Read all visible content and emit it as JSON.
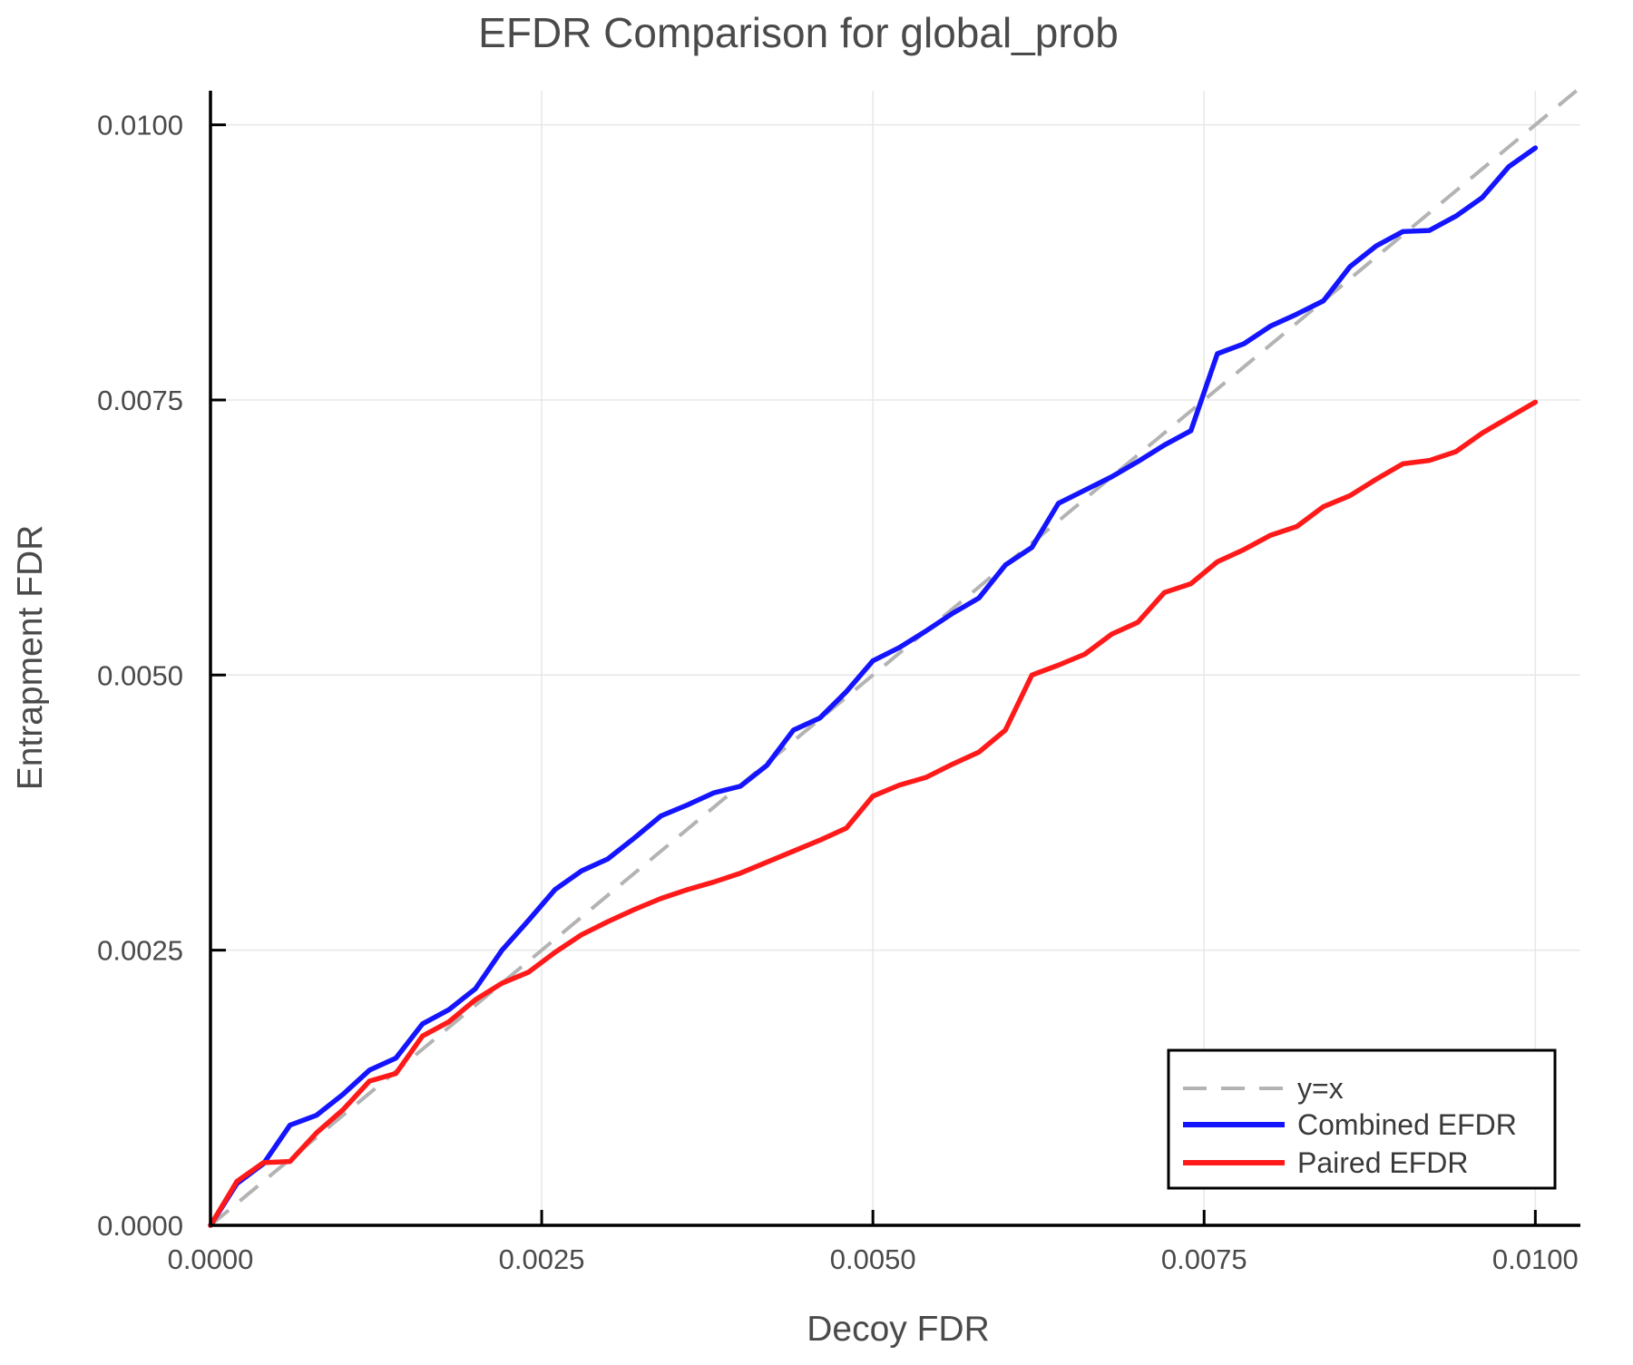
{
  "figure": {
    "title": "EFDR Comparison for global_prob",
    "xlabel": "Decoy FDR",
    "ylabel": "Entrapment FDR"
  },
  "legend": {
    "position": "bottom-right",
    "items": [
      {
        "label": "y=x",
        "color": "#b3b3b3",
        "dashed": true
      },
      {
        "label": "Combined EFDR",
        "color": "#1414ff",
        "dashed": false
      },
      {
        "label": "Paired EFDR",
        "color": "#ff1a1a",
        "dashed": false
      }
    ]
  },
  "colors": {
    "background": "#ffffff",
    "grid": "#e7e7e7",
    "spine": "#000000",
    "text": "#4a4a4a",
    "reference_line": "#b3b3b3",
    "combined_line": "#1414ff",
    "paired_line": "#ff1a1a"
  },
  "chart_data": {
    "type": "line",
    "title": "EFDR Comparison for global_prob",
    "xlabel": "Decoy FDR",
    "ylabel": "Entrapment FDR",
    "xlim": [
      0,
      0.01034
    ],
    "ylim": [
      0,
      0.01031
    ],
    "grid": true,
    "legend_position": "bottom-right",
    "x_ticks": {
      "values": [
        0.0,
        0.0025,
        0.005,
        0.0075,
        0.01
      ],
      "labels": [
        "0.0000",
        "0.0025",
        "0.0050",
        "0.0075",
        "0.0100"
      ]
    },
    "y_ticks": {
      "values": [
        0.0,
        0.0025,
        0.005,
        0.0075,
        0.01
      ],
      "labels": [
        "0.0000",
        "0.0025",
        "0.0050",
        "0.0075",
        "0.0100"
      ]
    },
    "x": [
      0.0,
      0.0002,
      0.0004,
      0.0006,
      0.0008,
      0.001,
      0.0012,
      0.0014,
      0.0016,
      0.0018,
      0.002,
      0.0022,
      0.0024,
      0.0026,
      0.0028,
      0.003,
      0.0032,
      0.0034,
      0.0036,
      0.0038,
      0.004,
      0.0042,
      0.0044,
      0.0046,
      0.0048,
      0.005,
      0.0052,
      0.0054,
      0.0056,
      0.0058,
      0.006,
      0.0062,
      0.0064,
      0.0066,
      0.0068,
      0.007,
      0.0072,
      0.0074,
      0.0076,
      0.0078,
      0.008,
      0.0082,
      0.0084,
      0.0086,
      0.0088,
      0.009,
      0.0092,
      0.0094,
      0.0096,
      0.0098,
      0.01
    ],
    "series": [
      {
        "name": "y=x",
        "diagonal": true,
        "color": "#b3b3b3",
        "style": "dashed"
      },
      {
        "name": "Combined EFDR",
        "color": "#1414ff",
        "style": "solid",
        "values": [
          0.0,
          0.00038,
          0.00056,
          0.00091,
          0.001,
          0.00119,
          0.00141,
          0.00152,
          0.00183,
          0.00196,
          0.00215,
          0.0025,
          0.00277,
          0.00305,
          0.00322,
          0.00333,
          0.00352,
          0.00372,
          0.00382,
          0.00393,
          0.00399,
          0.00418,
          0.0045,
          0.00461,
          0.00485,
          0.00513,
          0.00525,
          0.0054,
          0.00556,
          0.0057,
          0.006,
          0.00616,
          0.00656,
          0.00668,
          0.0068,
          0.00694,
          0.00709,
          0.00722,
          0.00792,
          0.00801,
          0.00817,
          0.00828,
          0.0084,
          0.00871,
          0.0089,
          0.00903,
          0.00904,
          0.00917,
          0.00934,
          0.00962,
          0.00979
        ]
      },
      {
        "name": "Paired EFDR",
        "color": "#ff1a1a",
        "style": "solid",
        "values": [
          0.0,
          0.0004,
          0.00057,
          0.00058,
          0.00084,
          0.00105,
          0.00131,
          0.00138,
          0.00172,
          0.00185,
          0.00205,
          0.0022,
          0.0023,
          0.00248,
          0.00264,
          0.00276,
          0.00287,
          0.00297,
          0.00305,
          0.00312,
          0.0032,
          0.0033,
          0.0034,
          0.0035,
          0.00361,
          0.0039,
          0.004,
          0.00407,
          0.00419,
          0.0043,
          0.0045,
          0.005,
          0.00509,
          0.00519,
          0.00537,
          0.00548,
          0.00575,
          0.00583,
          0.00603,
          0.00614,
          0.00627,
          0.00635,
          0.00653,
          0.00663,
          0.00678,
          0.00692,
          0.00695,
          0.00703,
          0.0072,
          0.00734,
          0.00748
        ]
      }
    ]
  }
}
